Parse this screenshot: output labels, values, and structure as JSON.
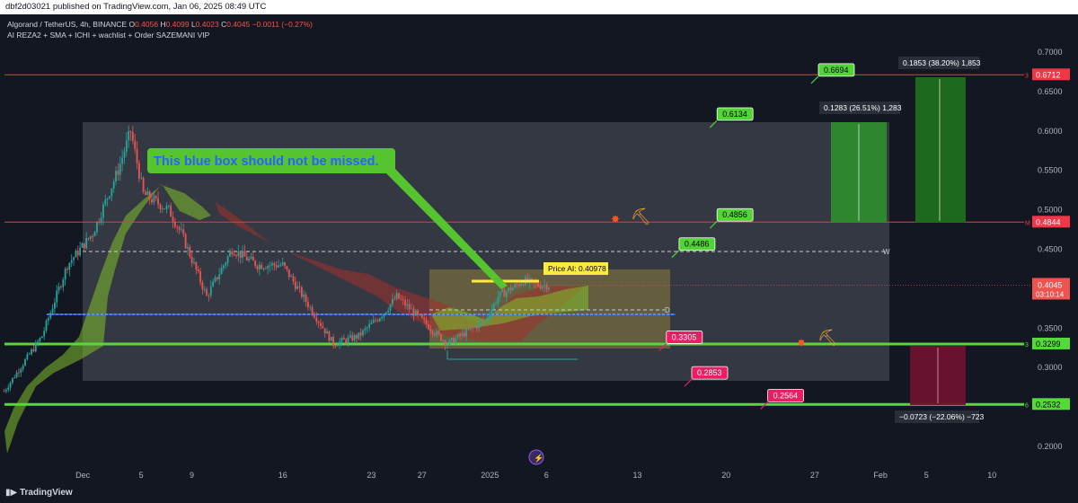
{
  "header": {
    "published": "dbf2d03021 published on TradingView.com, Jan 06, 2025 08:49 UTC",
    "symbol": "Algorand / TetherUS, 4h, BINANCE",
    "ohlc": {
      "o_label": "O",
      "o": "0.4056",
      "h_label": "H",
      "h": "0.4099",
      "l_label": "L",
      "l": "0.4023",
      "c_label": "C",
      "c": "0.4045",
      "change": "−0.0011 (−0.27%)"
    },
    "indicators": "AI REZA2 + SMA + ICHI + wachlist + Order SAZEMANI VIP"
  },
  "footer": {
    "brand": "TradingView"
  },
  "colors": {
    "background": "#131722",
    "candle_up": "#26a69a",
    "candle_down": "#ef5350",
    "green_line": "#56d83a",
    "red_line": "#f23645",
    "blue_line": "#2962ff",
    "label_green": "#52d437",
    "label_pink": "#e91e63"
  },
  "chart_data": {
    "type": "candlestick",
    "symbol": "ALGOUSDT",
    "timeframe": "4h",
    "ylim": [
      0.19,
      0.71
    ],
    "y_ticks": [
      "0.7000",
      "0.6500",
      "0.6000",
      "0.5500",
      "0.5000",
      "0.4500",
      "0.3500",
      "0.3000",
      "0.2000"
    ],
    "x_ticks": [
      "Dec",
      "5",
      "9",
      "16",
      "23",
      "27",
      "2025",
      "6",
      "13",
      "20",
      "27",
      "Feb",
      "5",
      "10"
    ],
    "current_price": {
      "value": "0.4045",
      "countdown": "03:10:14"
    },
    "price_series": [
      {
        "t": "Nov 24",
        "close": 0.27
      },
      {
        "t": "Nov 27",
        "close": 0.34
      },
      {
        "t": "Nov 29",
        "close": 0.43
      },
      {
        "t": "Dec 1",
        "close": 0.47
      },
      {
        "t": "Dec 3",
        "close": 0.55
      },
      {
        "t": "Dec 4",
        "close": 0.6
      },
      {
        "t": "Dec 5",
        "close": 0.52
      },
      {
        "t": "Dec 7",
        "close": 0.5
      },
      {
        "t": "Dec 8",
        "close": 0.47
      },
      {
        "t": "Dec 10",
        "close": 0.39
      },
      {
        "t": "Dec 12",
        "close": 0.45
      },
      {
        "t": "Dec 14",
        "close": 0.43
      },
      {
        "t": "Dec 16",
        "close": 0.43
      },
      {
        "t": "Dec 18",
        "close": 0.38
      },
      {
        "t": "Dec 20",
        "close": 0.33
      },
      {
        "t": "Dec 22",
        "close": 0.34
      },
      {
        "t": "Dec 24",
        "close": 0.37
      },
      {
        "t": "Dec 25",
        "close": 0.39
      },
      {
        "t": "Dec 27",
        "close": 0.36
      },
      {
        "t": "Dec 29",
        "close": 0.33
      },
      {
        "t": "Dec 31",
        "close": 0.35
      },
      {
        "t": "Jan 1",
        "close": 0.36
      },
      {
        "t": "Jan 2",
        "close": 0.39
      },
      {
        "t": "Jan 3",
        "close": 0.4
      },
      {
        "t": "Jan 4",
        "close": 0.41
      },
      {
        "t": "Jan 5",
        "close": 0.405
      },
      {
        "t": "Jan 6",
        "close": 0.4045
      }
    ],
    "horizontal_levels": [
      {
        "price": 0.6712,
        "label": "0.6712",
        "tag": "3",
        "color": "#f23645"
      },
      {
        "price": 0.4844,
        "label": "0.4844",
        "tag": "M",
        "color": "#f23645"
      },
      {
        "price": 0.3299,
        "label": "0.3299",
        "tag": "3",
        "color": "#56d83a"
      },
      {
        "price": 0.2532,
        "label": "0.2532",
        "tag": "6",
        "color": "#56d83a"
      }
    ],
    "target_labels": [
      {
        "text": "0.6694",
        "price": 0.6694,
        "date": "Jan 28",
        "color": "#52d437"
      },
      {
        "text": "0.6134",
        "price": 0.6134,
        "date": "Jan 20",
        "color": "#52d437"
      },
      {
        "text": "0.4856",
        "price": 0.4856,
        "date": "Jan 20",
        "color": "#52d437"
      },
      {
        "text": "0.4486",
        "price": 0.4486,
        "date": "Jan 17",
        "color": "#52d437"
      },
      {
        "text": "0.3305",
        "price": 0.3305,
        "date": "Jan 16",
        "color": "#e91e63"
      },
      {
        "text": "0.2853",
        "price": 0.2853,
        "date": "Jan 18",
        "color": "#e91e63"
      },
      {
        "text": "0.2564",
        "price": 0.2564,
        "date": "Jan 24",
        "color": "#e91e63"
      }
    ],
    "measure_boxes": [
      {
        "text": "0.1283 (26.51%) 1,283",
        "color": "#2e8b2e"
      },
      {
        "text": "0.1853 (38.20%) 1,853",
        "color": "#1e6e1e"
      },
      {
        "text": "−0.0723 (−22.06%) −723",
        "color": "#6b1230"
      }
    ],
    "annotation": "This blue box should not be missed.",
    "price_ai_label": "Price AI: 0.40978",
    "dash_labels": [
      "W",
      "D"
    ]
  }
}
